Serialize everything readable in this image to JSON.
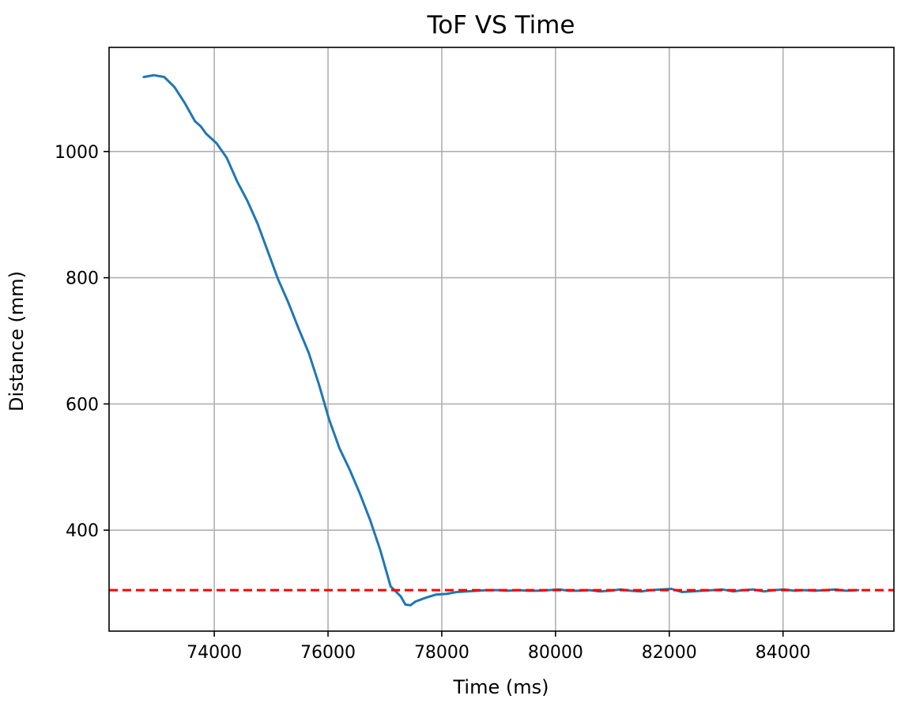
{
  "chart_data": {
    "type": "line",
    "title": "ToF VS Time",
    "xlabel": "Time (ms)",
    "ylabel": "Distance (mm)",
    "xlim": [
      72150,
      85950
    ],
    "ylim": [
      240,
      1165
    ],
    "xticks": [
      74000,
      76000,
      78000,
      80000,
      82000,
      84000
    ],
    "yticks": [
      400,
      600,
      800,
      1000
    ],
    "grid": true,
    "series": [
      {
        "color": "#1f77b4",
        "x": [
          72760,
          72940,
          73120,
          73300,
          73480,
          73660,
          73760,
          73860,
          74040,
          74220,
          74400,
          74580,
          74760,
          74940,
          75120,
          75300,
          75480,
          75660,
          75840,
          76020,
          76200,
          76380,
          76560,
          76740,
          76920,
          77100,
          77280,
          77360,
          77450,
          77540,
          77720,
          77900,
          78080,
          78260,
          78440,
          78620,
          78800,
          78980,
          79160,
          79340,
          79520,
          79700,
          79880,
          80060,
          80240,
          80420,
          80600,
          80780,
          80960,
          81140,
          81320,
          81500,
          81680,
          81860,
          82040,
          82220,
          82400,
          82580,
          82760,
          82940,
          83120,
          83300,
          83480,
          83660,
          83840,
          84020,
          84200,
          84380,
          84560,
          84740,
          84920,
          85100,
          85320
        ],
        "y": [
          1118,
          1121,
          1118,
          1102,
          1077,
          1048,
          1040,
          1028,
          1013,
          990,
          953,
          922,
          886,
          842,
          798,
          761,
          720,
          681,
          631,
          575,
          530,
          496,
          458,
          416,
          368,
          311,
          295,
          282,
          281,
          287,
          293,
          298,
          299,
          302,
          303,
          304,
          305,
          305,
          304,
          305,
          304,
          304,
          305,
          306,
          304,
          304,
          305,
          303,
          304,
          306,
          304,
          303,
          305,
          306,
          307,
          302,
          303,
          304,
          305,
          306,
          303,
          305,
          306,
          303,
          305,
          306,
          304,
          305,
          304,
          305,
          306,
          304,
          305
        ]
      }
    ],
    "reference_line": {
      "y": 305,
      "color": "#ff0000",
      "style": "dashed"
    }
  }
}
